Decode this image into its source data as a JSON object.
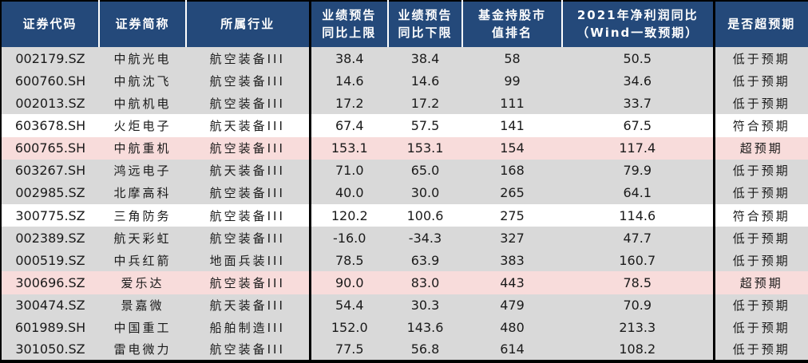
{
  "chart_data": {
    "type": "table",
    "title": "",
    "columns": [
      {
        "key": "code",
        "label_lines": [
          "证券代码"
        ],
        "width": 123,
        "cjk_text": false
      },
      {
        "key": "name",
        "label_lines": [
          "证券简称"
        ],
        "width": 109,
        "cjk_text": true
      },
      {
        "key": "industry",
        "label_lines": [
          "所属行业"
        ],
        "width": 155,
        "cjk_text": true
      },
      {
        "key": "forecast_upper",
        "label_lines": [
          "业绩预告",
          "同比上限"
        ],
        "width": 98,
        "cjk_text": false
      },
      {
        "key": "forecast_lower",
        "label_lines": [
          "业绩预告",
          "同比下限"
        ],
        "width": 93,
        "cjk_text": false
      },
      {
        "key": "fund_rank",
        "label_lines": [
          "基金持股市",
          "值排名"
        ],
        "width": 125,
        "cjk_text": false
      },
      {
        "key": "wind_consensus",
        "label_lines": [
          "2021年净利润同比",
          "（Wind一致预期）"
        ],
        "width": 190,
        "cjk_text": false
      },
      {
        "key": "status",
        "label_lines": [
          "是否超预期"
        ],
        "width": 119,
        "cjk_text": true
      }
    ],
    "rows": [
      {
        "code": "002179.SZ",
        "name": "中航光电",
        "industry": "航空装备III",
        "forecast_upper": "38.4",
        "forecast_lower": "38.4",
        "fund_rank": "58",
        "wind_consensus": "50.5",
        "status": "低于预期",
        "highlight": "below"
      },
      {
        "code": "600760.SH",
        "name": "中航沈飞",
        "industry": "航空装备III",
        "forecast_upper": "14.6",
        "forecast_lower": "14.6",
        "fund_rank": "99",
        "wind_consensus": "34.6",
        "status": "低于预期",
        "highlight": "below"
      },
      {
        "code": "002013.SZ",
        "name": "中航机电",
        "industry": "航空装备III",
        "forecast_upper": "17.2",
        "forecast_lower": "17.2",
        "fund_rank": "111",
        "wind_consensus": "33.7",
        "status": "低于预期",
        "highlight": "below"
      },
      {
        "code": "603678.SH",
        "name": "火炬电子",
        "industry": "航天装备III",
        "forecast_upper": "67.4",
        "forecast_lower": "57.5",
        "fund_rank": "141",
        "wind_consensus": "67.5",
        "status": "符合预期",
        "highlight": "meet"
      },
      {
        "code": "600765.SH",
        "name": "中航重机",
        "industry": "航空装备III",
        "forecast_upper": "153.1",
        "forecast_lower": "153.1",
        "fund_rank": "154",
        "wind_consensus": "117.4",
        "status": "超预期",
        "highlight": "exceed"
      },
      {
        "code": "603267.SH",
        "name": "鸿远电子",
        "industry": "航天装备III",
        "forecast_upper": "71.0",
        "forecast_lower": "65.0",
        "fund_rank": "168",
        "wind_consensus": "79.9",
        "status": "低于预期",
        "highlight": "below"
      },
      {
        "code": "002985.SZ",
        "name": "北摩高科",
        "industry": "航空装备III",
        "forecast_upper": "40.0",
        "forecast_lower": "30.0",
        "fund_rank": "265",
        "wind_consensus": "64.1",
        "status": "低于预期",
        "highlight": "below"
      },
      {
        "code": "300775.SZ",
        "name": "三角防务",
        "industry": "航空装备III",
        "forecast_upper": "120.2",
        "forecast_lower": "100.6",
        "fund_rank": "275",
        "wind_consensus": "114.6",
        "status": "符合预期",
        "highlight": "meet"
      },
      {
        "code": "002389.SZ",
        "name": "航天彩虹",
        "industry": "航空装备III",
        "forecast_upper": "-16.0",
        "forecast_lower": "-34.3",
        "fund_rank": "327",
        "wind_consensus": "47.7",
        "status": "低于预期",
        "highlight": "below"
      },
      {
        "code": "000519.SZ",
        "name": "中兵红箭",
        "industry": "地面兵装III",
        "forecast_upper": "78.5",
        "forecast_lower": "63.9",
        "fund_rank": "383",
        "wind_consensus": "160.7",
        "status": "低于预期",
        "highlight": "below"
      },
      {
        "code": "300696.SZ",
        "name": "爱乐达",
        "industry": "航空装备III",
        "forecast_upper": "90.0",
        "forecast_lower": "83.0",
        "fund_rank": "443",
        "wind_consensus": "78.5",
        "status": "超预期",
        "highlight": "exceed"
      },
      {
        "code": "300474.SZ",
        "name": "景嘉微",
        "industry": "航天装备III",
        "forecast_upper": "54.4",
        "forecast_lower": "30.3",
        "fund_rank": "479",
        "wind_consensus": "70.9",
        "status": "低于预期",
        "highlight": "below"
      },
      {
        "code": "601989.SH",
        "name": "中国重工",
        "industry": "船舶制造III",
        "forecast_upper": "152.0",
        "forecast_lower": "143.6",
        "fund_rank": "480",
        "wind_consensus": "213.3",
        "status": "低于预期",
        "highlight": "below"
      },
      {
        "code": "301050.SZ",
        "name": "雷电微力",
        "industry": "航空装备III",
        "forecast_upper": "77.5",
        "forecast_lower": "56.8",
        "fund_rank": "614",
        "wind_consensus": "108.2",
        "status": "低于预期",
        "highlight": "below"
      }
    ],
    "row_color_meaning": {
      "低于预期": "gray",
      "符合预期": "white",
      "超预期": "pink"
    },
    "layout": {
      "header_multiline": true,
      "black_separator_after_columns": [
        3,
        7
      ],
      "grid": "no inner horizontal lines; white separators in header only"
    }
  },
  "colors": {
    "header_bg": "#24497A",
    "header_text": "#FFFFFF",
    "row_below_expectation": "#D9D9D9",
    "row_meets_expectation": "#FFFFFF",
    "row_exceeds_expectation": "#F8DCDB",
    "table_border": "#000000",
    "body_text": "#1A1A1A"
  }
}
